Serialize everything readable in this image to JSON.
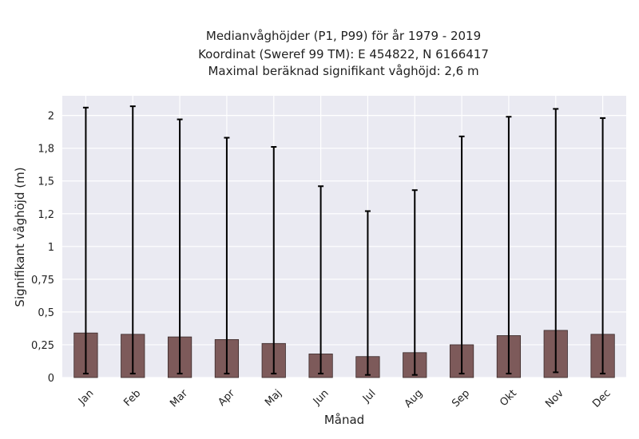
{
  "chart_data": {
    "type": "bar",
    "title_lines": [
      "Medianvåghöjder (P1, P99) för år 1979 - 2019",
      "Koordinat (Sweref 99 TM): E 454822, N 6166417",
      "Maximal beräknad signifikant våghöjd: 2,6 m"
    ],
    "xlabel": "Månad",
    "ylabel": "Signifikant våghöjd (m)",
    "categories": [
      "Jan",
      "Feb",
      "Mar",
      "Apr",
      "Maj",
      "Jun",
      "Jul",
      "Aug",
      "Sep",
      "Okt",
      "Nov",
      "Dec"
    ],
    "values": [
      0.34,
      0.33,
      0.31,
      0.29,
      0.26,
      0.18,
      0.16,
      0.19,
      0.25,
      0.32,
      0.36,
      0.33
    ],
    "error_low": [
      0.03,
      0.03,
      0.03,
      0.03,
      0.03,
      0.03,
      0.02,
      0.02,
      0.03,
      0.03,
      0.04,
      0.03
    ],
    "error_high": [
      2.06,
      2.07,
      1.97,
      1.83,
      1.76,
      1.46,
      1.27,
      1.43,
      1.84,
      1.99,
      2.05,
      1.98
    ],
    "ylim": [
      0,
      2.15
    ],
    "yticks": [
      0,
      0.25,
      0.5,
      0.75,
      1,
      1.25,
      1.5,
      1.75,
      2
    ],
    "ytick_labels": [
      "0",
      "0,25",
      "0,5",
      "0,75",
      "1",
      "1,2",
      "1,5",
      "1,8",
      "2"
    ],
    "grid": true,
    "colors": {
      "bar": "#7d5a5a",
      "bar_edge": "#3a2a2a",
      "plot_bg": "#eaeaf2",
      "grid": "#ffffff",
      "error": "#000000"
    }
  }
}
